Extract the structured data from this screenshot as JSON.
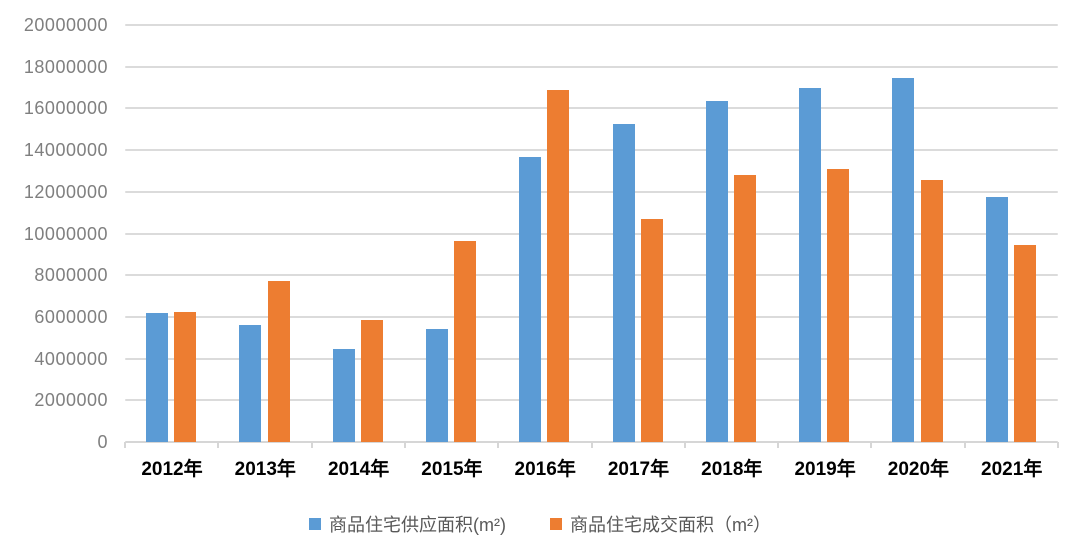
{
  "chart_data": {
    "type": "bar",
    "title": "",
    "xlabel": "",
    "ylabel": "",
    "categories": [
      "2012年",
      "2013年",
      "2014年",
      "2015年",
      "2016年",
      "2017年",
      "2018年",
      "2019年",
      "2020年",
      "2021年"
    ],
    "series": [
      {
        "key": "supply",
        "name": "商品住宅供应面积(m²)",
        "color": "#5B9BD5",
        "values": [
          6200000,
          5600000,
          4450000,
          5400000,
          13650000,
          15250000,
          16350000,
          17000000,
          17450000,
          11750000
        ]
      },
      {
        "key": "sold",
        "name": "商品住宅成交面积（m²）",
        "color": "#ED7D31",
        "values": [
          6250000,
          7700000,
          5850000,
          9650000,
          16900000,
          10700000,
          12800000,
          13100000,
          12550000,
          9450000
        ]
      }
    ],
    "ylim": [
      0,
      20000000
    ],
    "ytick_step": 2000000,
    "ytick_labels": [
      "0",
      "2000000",
      "4000000",
      "6000000",
      "8000000",
      "10000000",
      "12000000",
      "14000000",
      "16000000",
      "18000000",
      "20000000"
    ],
    "grid": true,
    "legend_position": "bottom"
  },
  "colors": {
    "background": "#FFFFFF",
    "gridline": "#DBDBDB",
    "axis_line": "#D6D6D6",
    "ytick_text": "#7F7F7F",
    "xtick_text": "#000000",
    "legend_text": "#595959"
  }
}
